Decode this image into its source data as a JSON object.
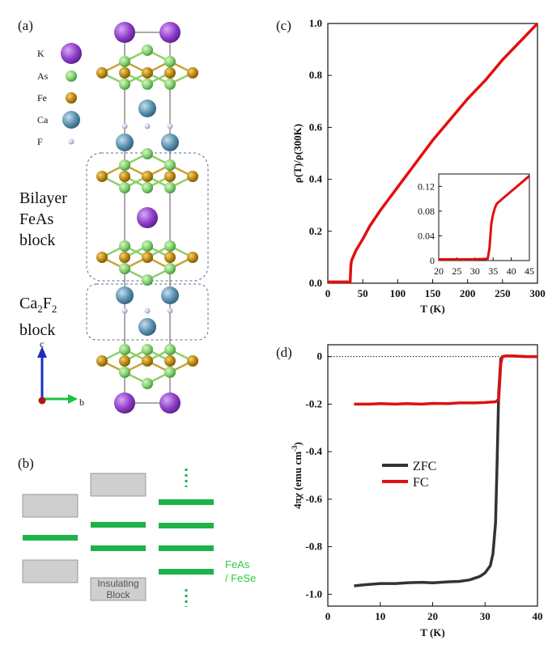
{
  "panels": {
    "a": {
      "label": "(a)"
    },
    "b": {
      "label": "(b)"
    },
    "c": {
      "label": "(c)"
    },
    "d": {
      "label": "(d)"
    }
  },
  "structure": {
    "legend": [
      {
        "symbol": "K",
        "color": "#8e3fc9"
      },
      {
        "symbol": "As",
        "color": "#7fcf6a"
      },
      {
        "symbol": "Fe",
        "color": "#b8860b"
      },
      {
        "symbol": "Ca",
        "color": "#5a8fae"
      },
      {
        "symbol": "F",
        "color": "#b9b6d6"
      }
    ],
    "block_bilayer": [
      "Bilayer",
      "FeAs",
      "block"
    ],
    "block_ca2f2_main": "Ca",
    "block_ca2f2_sub1": "2",
    "block_ca2f2_mid": "F",
    "block_ca2f2_sub2": "2",
    "block_ca2f2_line2": "block",
    "axis_c": "c",
    "axis_b": "b"
  },
  "schematic": {
    "insulating_line1": "Insulating",
    "insulating_line2": "Block",
    "feas_line1": "FeAs",
    "feas_line2": "/ FeSe",
    "colors": {
      "layer": "#1db24a",
      "block": "#cfcfcf"
    }
  },
  "chart_data": [
    {
      "type": "line",
      "panel": "c",
      "xlabel": "T (K)",
      "ylabel": "ρ(T)/ρ(300K)",
      "xlim": [
        0,
        300
      ],
      "ylim": [
        0,
        1.0
      ],
      "xticks": [
        0,
        50,
        100,
        150,
        200,
        250,
        300
      ],
      "yticks": [
        "0.0",
        "0.2",
        "0.4",
        "0.6",
        "0.8",
        "1.0"
      ],
      "series": [
        {
          "color": "#e01010",
          "x": [
            0,
            32,
            33,
            34,
            36,
            40,
            50,
            60,
            75,
            100,
            125,
            150,
            175,
            200,
            225,
            250,
            275,
            300
          ],
          "y": [
            0.005,
            0.005,
            0.07,
            0.088,
            0.1,
            0.125,
            0.17,
            0.22,
            0.28,
            0.37,
            0.46,
            0.55,
            0.63,
            0.71,
            0.78,
            0.86,
            0.93,
            1.0
          ]
        }
      ],
      "inset": {
        "xlim": [
          20,
          45
        ],
        "ylim": [
          0,
          0.14
        ],
        "xticks": [
          "20",
          "25",
          "30",
          "35",
          "40",
          "45"
        ],
        "yticks": [
          "0",
          "0.04",
          "0.08",
          "0.12"
        ],
        "series": [
          {
            "color": "#e01010",
            "x": [
              20,
              30,
              33.5,
              34,
              34.5,
              35,
              35.5,
              36,
              38,
              40,
              42,
              45
            ],
            "y": [
              0.002,
              0.002,
              0.003,
              0.02,
              0.06,
              0.075,
              0.085,
              0.092,
              0.102,
              0.112,
              0.122,
              0.137
            ]
          }
        ]
      }
    },
    {
      "type": "line",
      "panel": "d",
      "xlabel": "T (K)",
      "ylabel": "4πχ (emu cm⁻³)",
      "ylabel_main": "4π",
      "ylabel_chi": "χ",
      "ylabel_units": "(emu cm",
      "ylabel_sup": "-3",
      "ylabel_close": ")",
      "xlim": [
        0,
        40
      ],
      "ylim": [
        -1.05,
        0.05
      ],
      "xticks": [
        0,
        10,
        20,
        30,
        40
      ],
      "yticks": [
        "-1.0",
        "-0.8",
        "-0.6",
        "-0.4",
        "-0.2",
        "0"
      ],
      "legend": [
        {
          "name": "ZFC",
          "color": "#333333"
        },
        {
          "name": "FC",
          "color": "#e01010"
        }
      ],
      "series": [
        {
          "name": "ZFC",
          "color": "#333333",
          "x": [
            5,
            7,
            10,
            13,
            15,
            18,
            20,
            23,
            25,
            27,
            29,
            30,
            31,
            31.5,
            32,
            32.3,
            32.6,
            33,
            33.3,
            34,
            36,
            38,
            40
          ],
          "y": [
            -0.965,
            -0.96,
            -0.955,
            -0.955,
            -0.952,
            -0.95,
            -0.952,
            -0.948,
            -0.946,
            -0.94,
            -0.925,
            -0.91,
            -0.88,
            -0.83,
            -0.7,
            -0.45,
            -0.15,
            -0.01,
            0.0,
            0.003,
            0.002,
            0.0,
            0.0
          ]
        },
        {
          "name": "FC",
          "color": "#e01010",
          "x": [
            5,
            8,
            10,
            13,
            15,
            18,
            20,
            23,
            25,
            28,
            30,
            32,
            32.6,
            33,
            33.3,
            34,
            36,
            38,
            40
          ],
          "y": [
            -0.2,
            -0.2,
            -0.198,
            -0.2,
            -0.198,
            -0.2,
            -0.197,
            -0.198,
            -0.195,
            -0.195,
            -0.193,
            -0.19,
            -0.18,
            -0.03,
            0.0,
            0.003,
            0.002,
            0.0,
            0.0
          ]
        }
      ]
    }
  ]
}
